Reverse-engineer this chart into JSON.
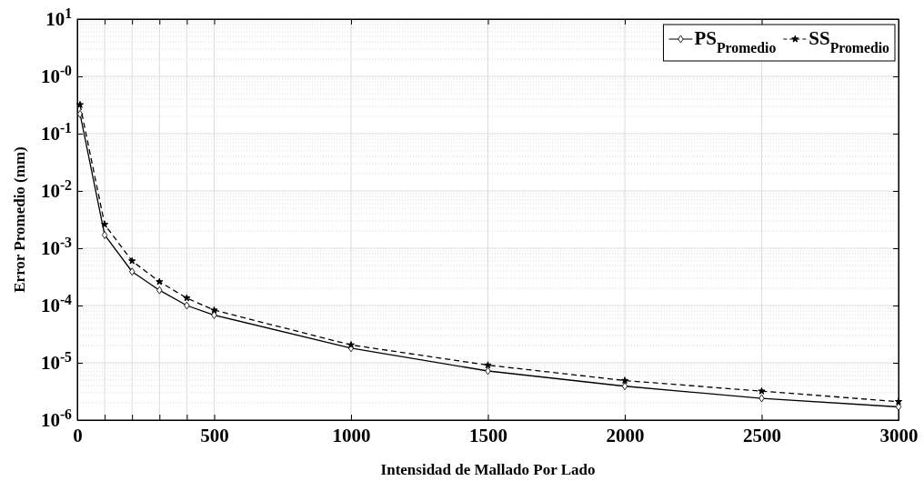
{
  "chart_data": {
    "type": "line",
    "xlabel": "Intensidad de Mallado Por Lado",
    "ylabel": "Error Promedio (mm)",
    "x": [
      10,
      100,
      200,
      300,
      400,
      500,
      1000,
      1500,
      2000,
      2500,
      3000
    ],
    "series": [
      {
        "name": "PS$_{Promedio}$",
        "color": "#000000",
        "marker": "diamond",
        "line_style": "solid",
        "values": [
          0.22,
          0.0017,
          0.00039,
          0.000185,
          0.0001,
          6.8e-05,
          1.8e-05,
          7.2e-06,
          3.9e-06,
          2.4e-06,
          1.7e-06
        ]
      },
      {
        "name": "SS$_{Promedio}$",
        "color": "#000000",
        "marker": "star",
        "line_style": "dashed",
        "values": [
          0.32,
          0.0026,
          0.0006,
          0.00026,
          0.000135,
          8.3e-05,
          2.05e-05,
          9.1e-06,
          4.9e-06,
          3.2e-06,
          2.1e-06
        ]
      }
    ],
    "xlim": [
      0,
      3000
    ],
    "xticks": [
      0,
      {
        "value": 100,
        "label": null
      },
      {
        "value": 200,
        "label": null
      },
      {
        "value": 300,
        "label": null
      },
      {
        "value": 400,
        "label": null
      },
      500,
      1000,
      1500,
      2000,
      2500,
      3000
    ],
    "ylim": [
      1e-06,
      10
    ],
    "yticks": [
      {
        "value": 1e-06,
        "label": "10$^{-6}$"
      },
      {
        "value": 1e-05,
        "label": "10$^{-5}$"
      },
      {
        "value": 0.0001,
        "label": "10$^{-4}$"
      },
      {
        "value": 0.001,
        "label": "10$^{-3}$"
      },
      {
        "value": 0.01,
        "label": "10$^{-2}$"
      },
      {
        "value": 0.1,
        "label": "10$^{-1}$"
      },
      {
        "value": 1,
        "label": "10$^{-0}$"
      },
      {
        "value": 10,
        "label": "10$^{1}$"
      }
    ],
    "log": "y",
    "grid": true,
    "legend": "top right"
  }
}
